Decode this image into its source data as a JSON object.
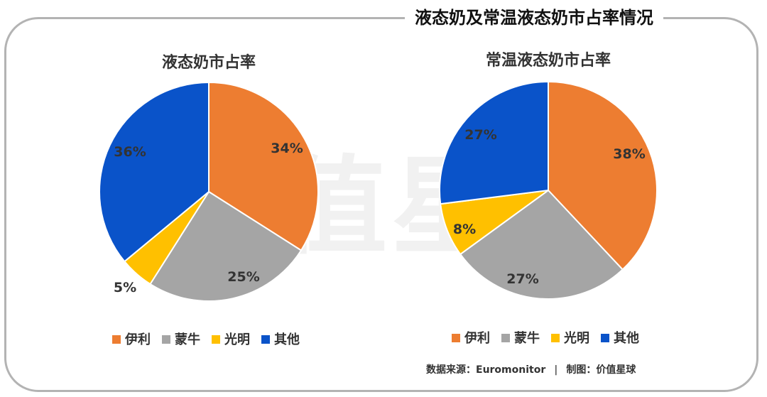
{
  "title": "液态奶及常温液态奶市占率情况",
  "watermark": "值星",
  "colors": {
    "伊利": "#ED7D31",
    "蒙牛": "#A5A5A5",
    "光明": "#FFC000",
    "其他": "#0A53C9"
  },
  "chart_data": [
    {
      "type": "pie",
      "title": "液态奶市占率",
      "categories": [
        "伊利",
        "蒙牛",
        "光明",
        "其他"
      ],
      "values": [
        34,
        25,
        5,
        36
      ],
      "labels": [
        "34%",
        "25%",
        "5%",
        "36%"
      ],
      "legend": "bottom"
    },
    {
      "type": "pie",
      "title": "常温液态奶市占率",
      "categories": [
        "伊利",
        "蒙牛",
        "光明",
        "其他"
      ],
      "values": [
        38,
        27,
        8,
        27
      ],
      "labels": [
        "38%",
        "27%",
        "8%",
        "27%"
      ],
      "legend": "bottom"
    }
  ],
  "source": {
    "text": "数据来源：Euromonitor",
    "separator": "|",
    "maker": "制图：价值星球"
  }
}
